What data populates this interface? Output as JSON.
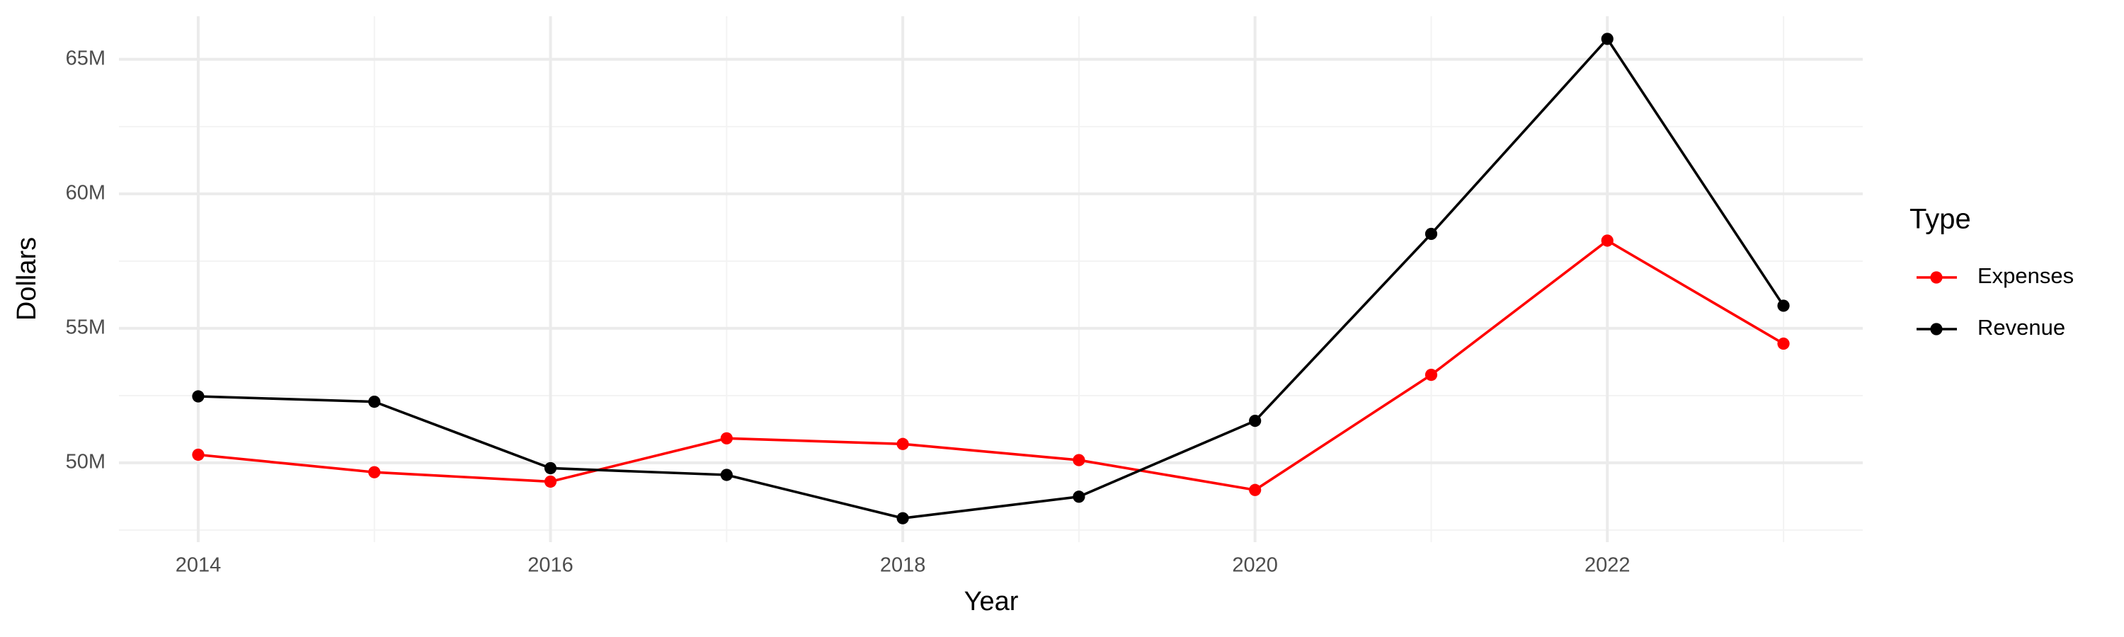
{
  "chart_data": {
    "type": "line",
    "x_label": "Year",
    "y_label": "Dollars",
    "legend_title": "Type",
    "legend_position": "right",
    "grid": true,
    "x": [
      2014,
      2015,
      2016,
      2017,
      2018,
      2019,
      2020,
      2021,
      2022,
      2023
    ],
    "series": [
      {
        "name": "Expenses",
        "color": "#ff0000",
        "values": [
          50.3,
          49.65,
          49.3,
          50.91,
          50.7,
          50.1,
          48.99,
          53.27,
          58.26,
          54.43
        ]
      },
      {
        "name": "Revenue",
        "color": "#000000",
        "values": [
          52.47,
          52.27,
          49.8,
          49.55,
          47.94,
          48.74,
          51.56,
          58.51,
          65.76,
          55.84
        ]
      }
    ],
    "xlim": [
      2013.55,
      2023.45
    ],
    "xticks": [
      2014,
      2016,
      2018,
      2020,
      2022
    ],
    "ylim": [
      47.05,
      66.6
    ],
    "yticks": [
      {
        "value": 50,
        "label": "50M"
      },
      {
        "value": 55,
        "label": "55M"
      },
      {
        "value": 60,
        "label": "60M"
      },
      {
        "value": 65,
        "label": "65M"
      }
    ]
  }
}
